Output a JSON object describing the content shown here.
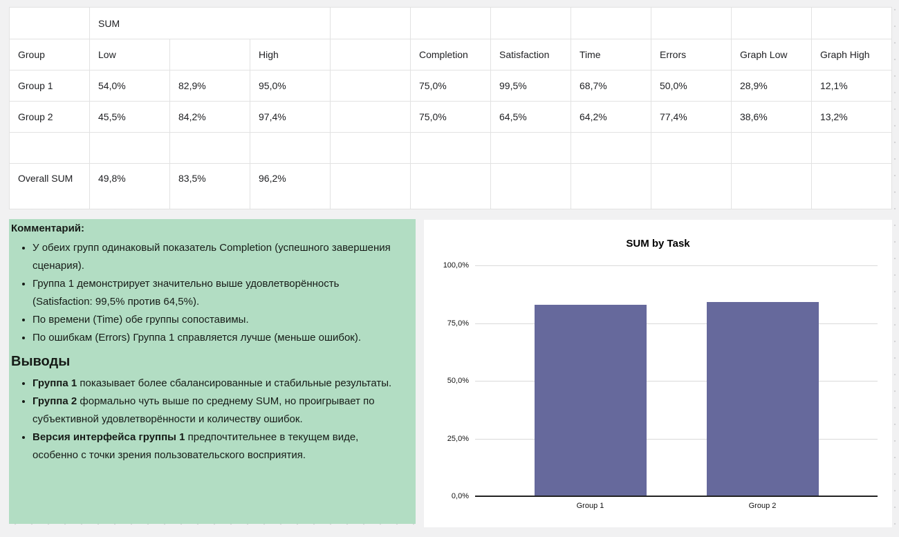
{
  "colors": {
    "page_background": "#f1f1f2",
    "comment_background": "#b2ddc3",
    "bar_color": "#66699c",
    "table_border": "#e2e2e2"
  },
  "table": {
    "sum_header": "SUM",
    "column_headers": [
      "Group",
      "Low",
      "",
      "High",
      "",
      "Completion",
      "Satisfaction",
      "Time",
      "Errors",
      "Graph Low",
      "Graph High"
    ],
    "data_rows": [
      [
        "Group 1",
        "54,0%",
        "82,9%",
        "95,0%",
        "",
        "75,0%",
        "99,5%",
        "68,7%",
        "50,0%",
        "28,9%",
        "12,1%"
      ],
      [
        "Group 2",
        "45,5%",
        "84,2%",
        "97,4%",
        "",
        "75,0%",
        "64,5%",
        "64,2%",
        "77,4%",
        "38,6%",
        "13,2%"
      ],
      [
        "",
        "",
        "",
        "",
        "",
        "",
        "",
        "",
        "",
        "",
        ""
      ]
    ],
    "footer_row": [
      "Overall SUM",
      "49,8%",
      "83,5%",
      "96,2%",
      "",
      "",
      "",
      "",
      "",
      "",
      ""
    ]
  },
  "comment_box": {
    "heading": "Комментарий:",
    "bullets": [
      "У обеих групп одинаковый показатель Completion (успешного завершения сценария).",
      "Группа 1 демонстрирует значительно выше удовлетворённость (Satisfaction: 99,5% против 64,5%).",
      "По времени (Time) обе группы сопоставимы.",
      "По ошибкам (Errors) Группа 1 справляется лучше (меньше ошибок)."
    ],
    "conclusions_heading": "Выводы",
    "conclusions": [
      {
        "lead": "Группа 1",
        "text": " показывает более сбалансированные и стабильные результаты."
      },
      {
        "lead": "Группа 2",
        "text": " формально чуть выше по среднему SUM, но проигрывает по субъективной удовлетворённости и количеству ошибок."
      },
      {
        "lead": "Версия интерфейса группы 1",
        "text": " предпочтительнее в текущем виде, особенно с точки зрения пользовательского восприятия."
      }
    ]
  },
  "chart_data": {
    "type": "bar",
    "title": "SUM by Task",
    "categories": [
      "Group 1",
      "Group 2"
    ],
    "series": [
      {
        "name": "SUM",
        "values": [
          82.9,
          84.2
        ]
      }
    ],
    "ylim": [
      0,
      100
    ],
    "y_ticks": [
      {
        "value": 100,
        "label": "100,0%"
      },
      {
        "value": 75,
        "label": "75,0%"
      },
      {
        "value": 50,
        "label": "50,0%"
      },
      {
        "value": 25,
        "label": "25,0%"
      },
      {
        "value": 0,
        "label": "0,0%"
      }
    ],
    "grid": true,
    "legend": "none",
    "bar_color": "#66699c"
  }
}
